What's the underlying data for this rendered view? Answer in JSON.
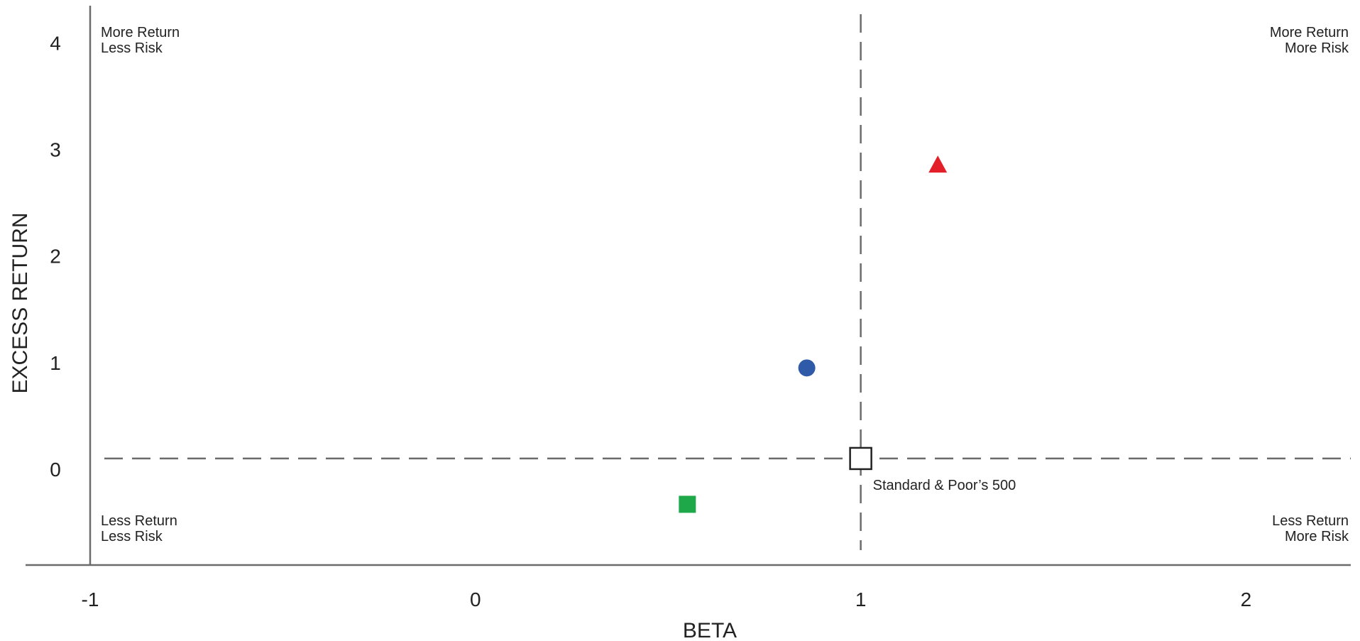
{
  "chart_data": {
    "type": "scatter",
    "title": "",
    "xlabel": "BETA",
    "ylabel": "EXCESS RETURN",
    "xlim": [
      -1,
      2.27
    ],
    "ylim": [
      -0.9,
      4.35
    ],
    "x_ticks": [
      -1,
      0,
      1,
      2
    ],
    "y_ticks": [
      0,
      1,
      2,
      3,
      4
    ],
    "x_tick_labels": [
      "-1",
      "0",
      "1",
      "2"
    ],
    "y_tick_labels": [
      "0",
      "1",
      "2",
      "3",
      "4"
    ],
    "grid": false,
    "reference_lines": {
      "beta": 1.0,
      "excess_return": 0.1
    },
    "quadrant_labels": {
      "top_left": [
        "More Return",
        "Less Risk"
      ],
      "top_right": [
        "More Return",
        "More Risk"
      ],
      "bottom_left": [
        "Less Return",
        "Less Risk"
      ],
      "bottom_right": [
        "Less Return",
        "More Risk"
      ]
    },
    "points": [
      {
        "x": 1.0,
        "y": 0.1,
        "marker": "open-square",
        "color": "#222222",
        "label": "Standard & Poor’s 500"
      },
      {
        "x": 0.86,
        "y": 0.95,
        "marker": "circle",
        "color": "#2f5aa8",
        "label": ""
      },
      {
        "x": 1.2,
        "y": 2.85,
        "marker": "triangle",
        "color": "#e3202a",
        "label": ""
      },
      {
        "x": 0.55,
        "y": -0.33,
        "marker": "square",
        "color": "#1ea84a",
        "label": ""
      }
    ]
  }
}
